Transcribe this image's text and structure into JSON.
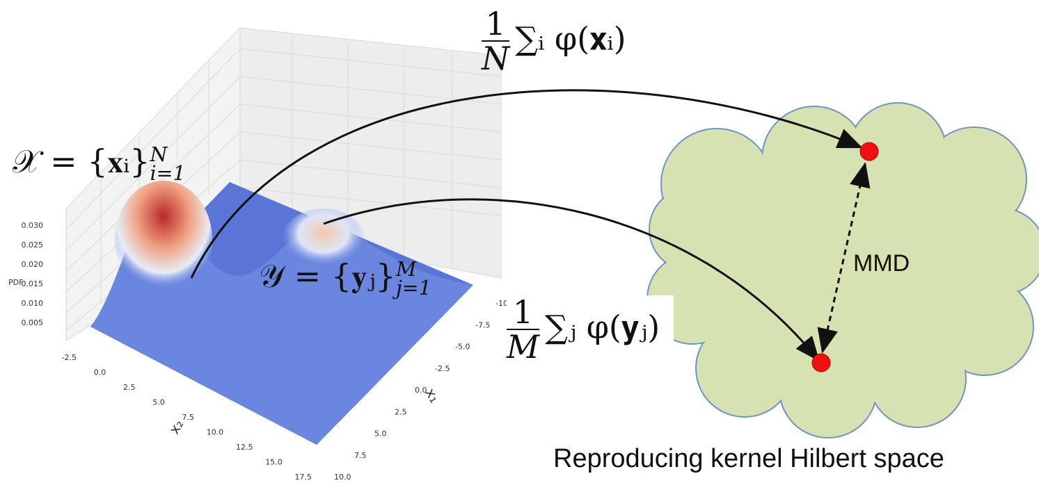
{
  "plot": {
    "z_label": "PDF",
    "z_ticks": [
      "0.030",
      "0.025",
      "0.020",
      "0.015",
      "0.010",
      "0.005"
    ],
    "x2_label": "x₂",
    "x2_ticks": [
      "-2.5",
      "0.0",
      "2.5",
      "5.0",
      "7.5",
      "10.0",
      "12.5",
      "15.0",
      "17.5"
    ],
    "x1_label": "x₁",
    "x1_ticks": [
      "-10.",
      "-7.5",
      "-5.0",
      "-2.5",
      "0.0",
      "2.5",
      "5.0",
      "7.5",
      "10.0"
    ]
  },
  "x_set": {
    "main": "𝒳 = {𝐱ᵢ}",
    "sup": "N",
    "sub": "i=1"
  },
  "y_set": {
    "main": "𝒴 = {𝐲ⱼ}",
    "sup": "M",
    "sub": "j=1"
  },
  "x_mean": {
    "numerator": "1",
    "denominator": "N",
    "sum": "∑ᵢ φ(𝐱ᵢ)"
  },
  "y_mean": {
    "numerator": "1",
    "denominator": "M",
    "sum": "∑ⱼ φ(𝐲ⱼ)"
  },
  "distance_label": "MMD",
  "space_label": "Reproducing kernel Hilbert space"
}
